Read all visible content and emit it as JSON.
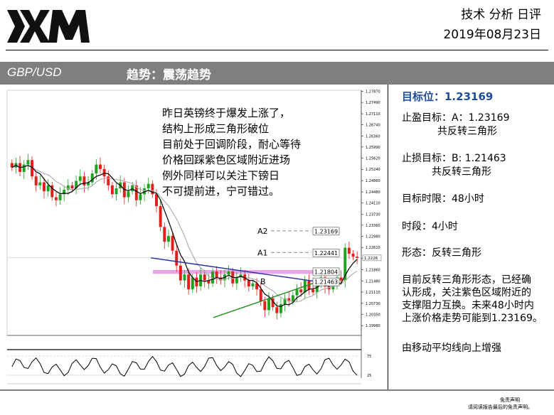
{
  "header": {
    "doc_title": "技术 分析 日评",
    "date": "2019年08月23日",
    "pair": "GBP/USD",
    "trend": "趋势：震荡趋势"
  },
  "annotation": {
    "lines": [
      "昨日英镑终于爆发上涨了，",
      "结构上形成三角形破位",
      "目前处于回调阶段，耐心等待",
      "价格回踩紫色区域附近进场",
      "例外同样可以关注下镑日",
      "不可提前进，宁可错过。"
    ]
  },
  "sidebar": {
    "target": "目标位：1.23169",
    "take_profit_line1": "止盈目标：A：1.23169",
    "take_profit_line2": "共反转三角形",
    "stop_loss_line1": "止损目标：B: 1.21463",
    "stop_loss_line2": "共反转三角形",
    "time_limit": "目标时限：48小时",
    "timeframe": "时段：4小时",
    "pattern": "形态：反转三角形",
    "desc_lines": [
      "目前反转三角形形态，已经确",
      "认形成，关注紫色区域附近的",
      "支撑阻力互换。未来48小时内",
      "上涨价格走势可能到1.23169。"
    ],
    "ma_note": "由移动平均线向上增强"
  },
  "footer": {
    "disclaimer_title": "免责声明",
    "disclaimer_text": "请阅读报告最后的免责声明。"
  },
  "colors": {
    "up_candle": "#1fa21f",
    "down_candle": "#e0201a",
    "ma_fast": "#000000",
    "ma_slow": "#b0b0b0",
    "resistance_line": "#1f2f9f",
    "support_line": "#1f8f1f",
    "zone": "#e08ee0",
    "header_bar": "#7f7f7f",
    "target_text": "#1f4e99"
  },
  "chart_data": {
    "type": "candlestick",
    "symbol": "GBP/USD",
    "timeframe": "4H",
    "ylim": [
      1.1965,
      1.279
    ],
    "y_ticks": [
      "1.27870",
      "1.27490",
      "1.27110",
      "1.26740",
      "1.26360",
      "1.25990",
      "1.25620",
      "1.25240",
      "1.24860",
      "1.24480",
      "1.24110",
      "1.23730",
      "1.23360",
      "1.22980",
      "1.22610",
      "1.22240",
      "1.21860",
      "1.21480",
      "1.21110",
      "1.20730",
      "1.20350",
      "1.19980"
    ],
    "current_price_label": "1.2226",
    "levels": [
      {
        "label": "A2",
        "value": 1.23169,
        "value_text": "1.23169"
      },
      {
        "label": "A1",
        "value": 1.22441,
        "value_text": "1.22441"
      },
      {
        "label": "",
        "value": 1.21804,
        "value_text": "1.21804"
      },
      {
        "label": "B",
        "value": 1.21463,
        "value_text": "1.21463"
      }
    ],
    "oscillator_ticks": [
      "75",
      "25"
    ],
    "closes": [
      1.253,
      1.2545,
      1.2515,
      1.254,
      1.2555,
      1.25,
      1.247,
      1.248,
      1.245,
      1.247,
      1.243,
      1.242,
      1.244,
      1.2455,
      1.247,
      1.246,
      1.2485,
      1.25,
      1.247,
      1.248,
      1.251,
      1.254,
      1.2525,
      1.25,
      1.247,
      1.244,
      1.246,
      1.248,
      1.243,
      1.245,
      1.247,
      1.242,
      1.244,
      1.246,
      1.2475,
      1.244,
      1.24,
      1.233,
      1.228,
      1.23,
      1.225,
      1.22,
      1.215,
      1.217,
      1.212,
      1.216,
      1.213,
      1.217,
      1.215,
      1.214,
      1.218,
      1.216,
      1.215,
      1.217,
      1.218,
      1.214,
      1.216,
      1.217,
      1.215,
      1.213,
      1.214,
      1.212,
      1.208,
      1.205,
      1.209,
      1.206,
      1.204,
      1.207,
      1.209,
      1.208,
      1.21,
      1.212,
      1.211,
      1.215,
      1.212,
      1.211,
      1.214,
      1.216,
      1.213,
      1.212,
      1.214,
      1.216,
      1.215,
      1.226,
      1.224,
      1.223,
      1.2226
    ]
  }
}
